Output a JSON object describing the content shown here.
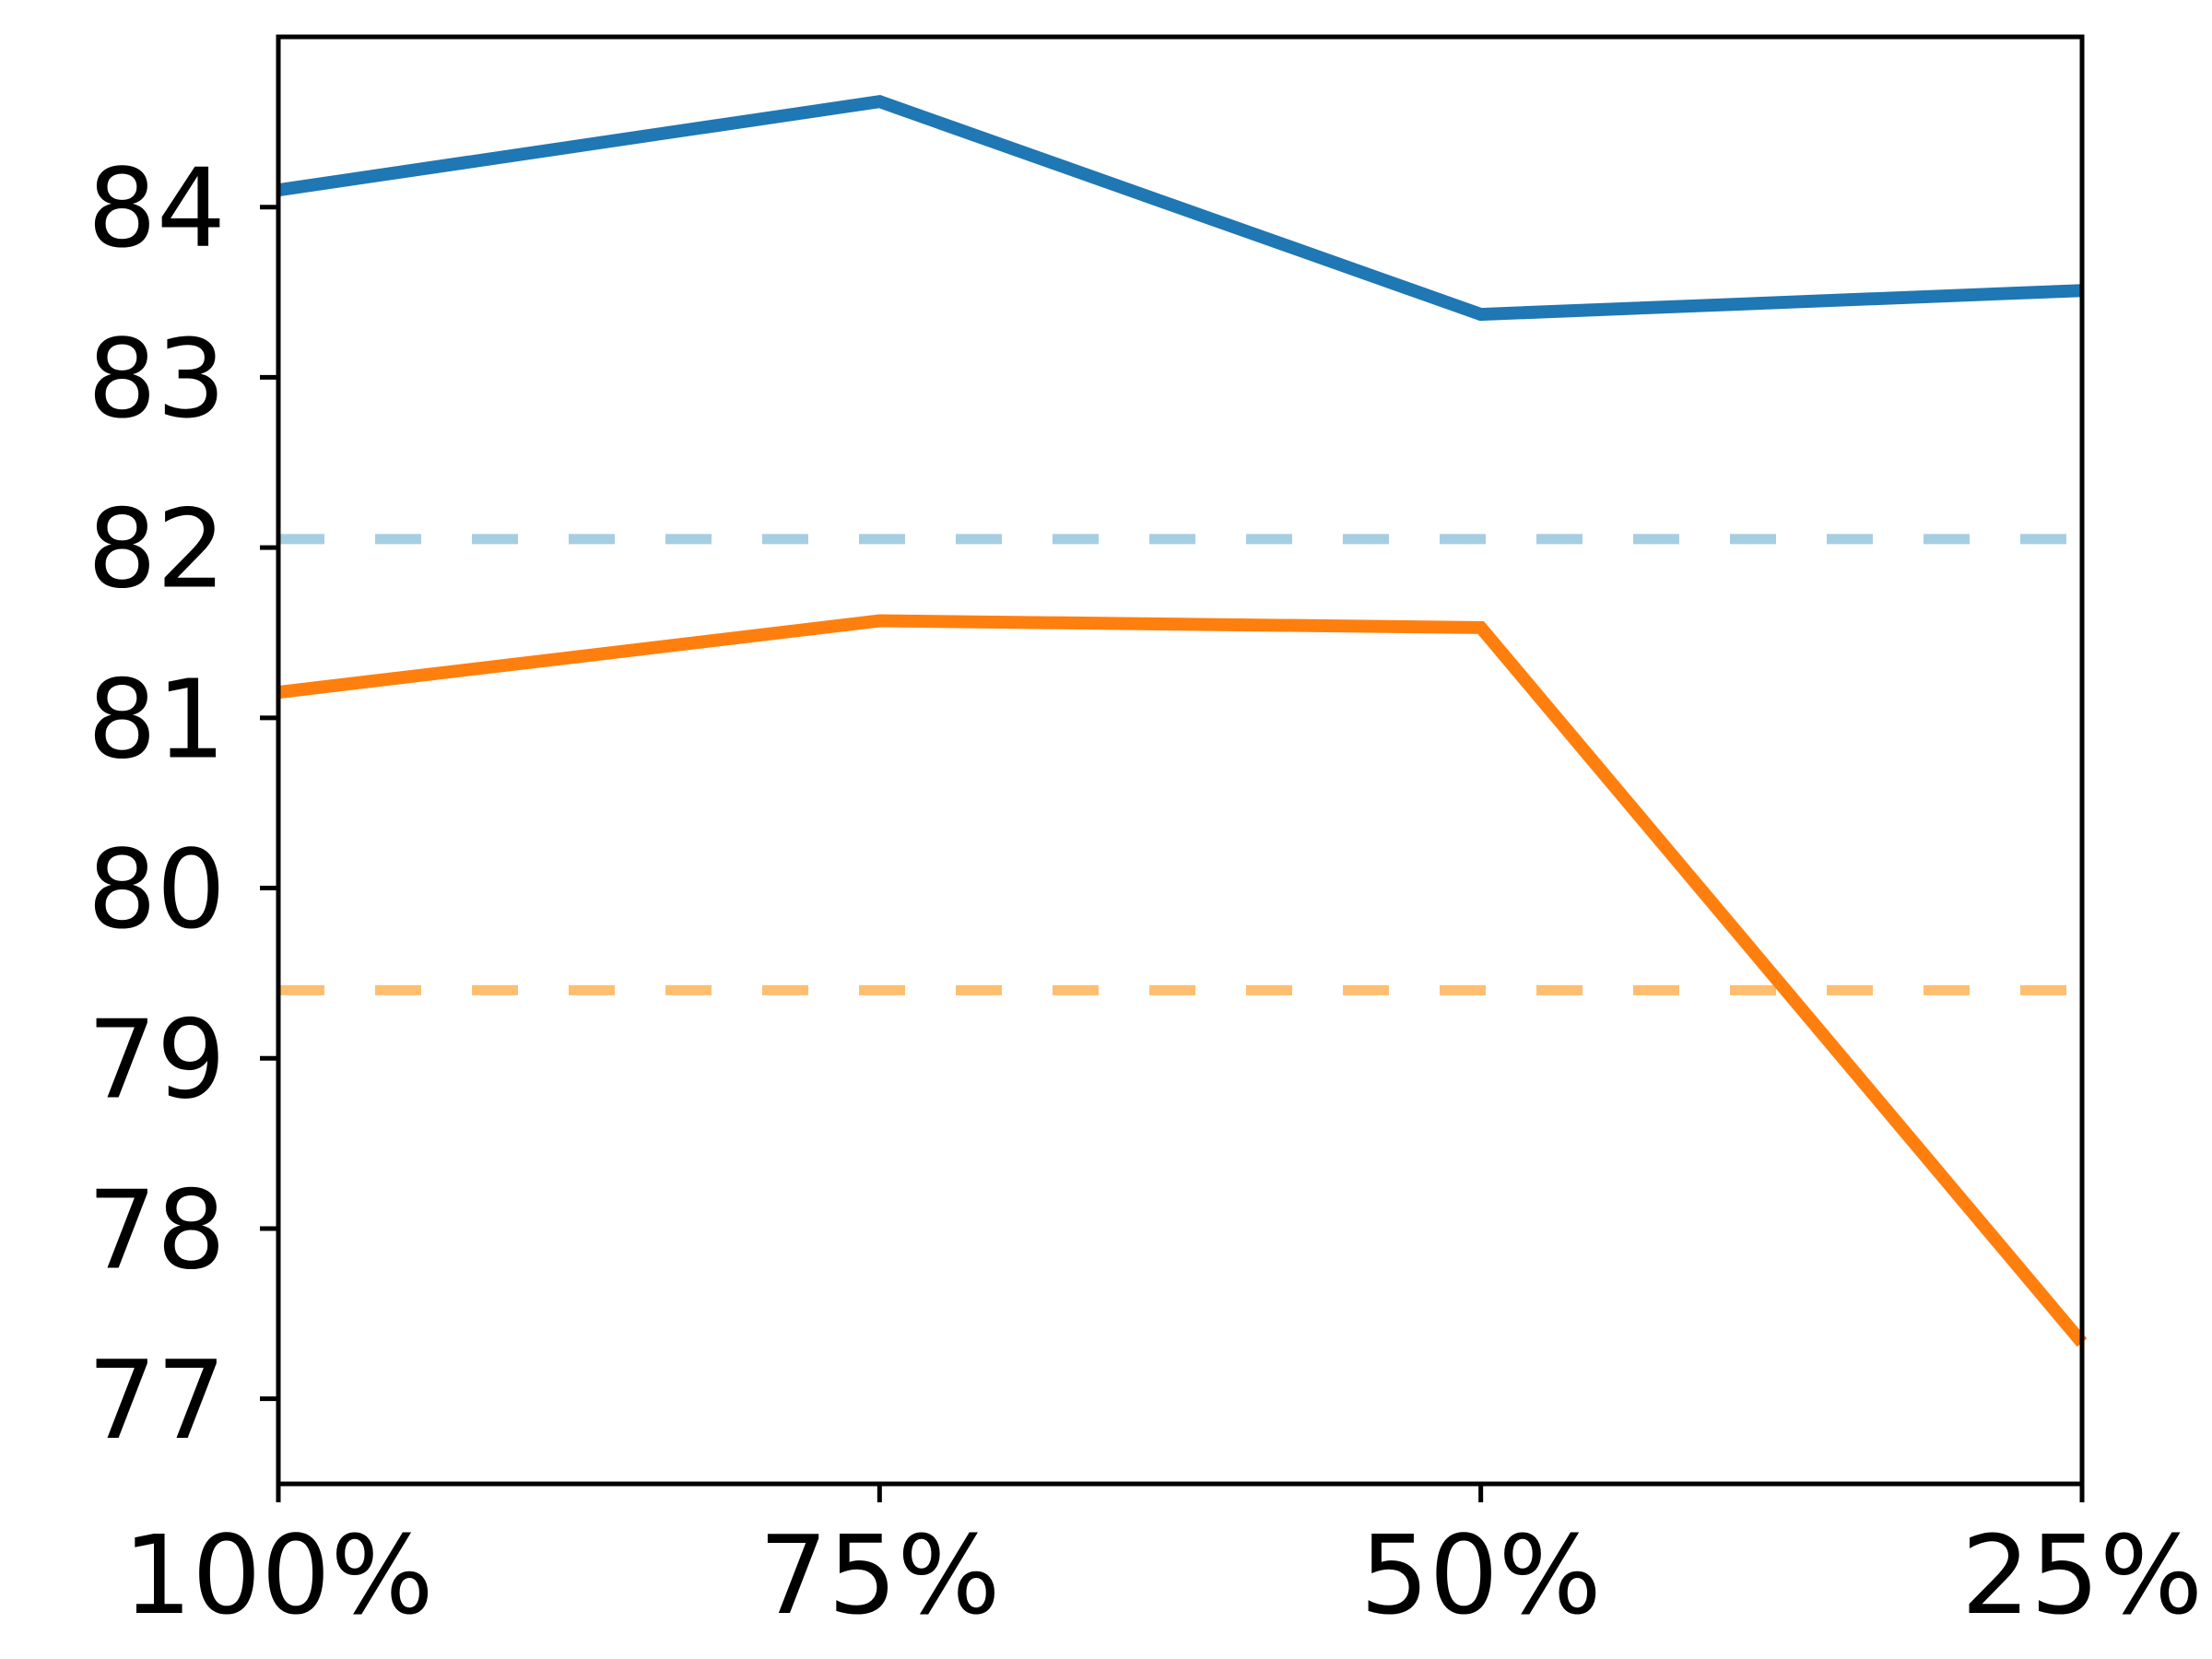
{
  "figure": {
    "background": "#ffffff",
    "axis_color": "#000000"
  },
  "chart_data": {
    "type": "line",
    "title": "",
    "xlabel": "",
    "ylabel": "",
    "categories": [
      "100%",
      "75%",
      "50%",
      "25%"
    ],
    "series": [
      {
        "name": "blue-solid-series",
        "color": "#1f77b4",
        "style": "solid",
        "values": [
          84.1,
          84.62,
          83.37,
          83.51
        ]
      },
      {
        "name": "orange-solid-series",
        "color": "#ff7f0e",
        "style": "solid",
        "values": [
          81.15,
          81.57,
          81.53,
          77.33
        ]
      }
    ],
    "baselines": [
      {
        "name": "blue-dashed-baseline",
        "color": "#a6cee3",
        "style": "dashed",
        "value": 82.05
      },
      {
        "name": "orange-dashed-baseline",
        "color": "#fdbf6f",
        "style": "dashed",
        "value": 79.4
      }
    ],
    "yticks": [
      77,
      78,
      79,
      80,
      81,
      82,
      83,
      84
    ],
    "ylim": [
      76.5,
      85.0
    ],
    "grid": false,
    "legend": null
  }
}
